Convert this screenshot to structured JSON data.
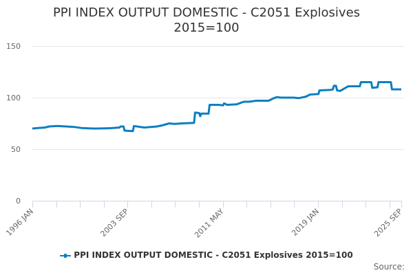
{
  "title_line1": "PPI INDEX OUTPUT DOMESTIC - C2051 Explosives",
  "title_line2": "2015=100",
  "legend_label": "PPI INDEX OUTPUT DOMESTIC - C2051 Explosives 2015=100",
  "source_label": "Source:",
  "colors": {
    "series": "#0a7fc2",
    "grid": "#e6e6e6",
    "axis": "#ccd6eb",
    "text": "#333333",
    "tick_text": "#666666"
  },
  "chart_data": {
    "type": "line",
    "title": "PPI INDEX OUTPUT DOMESTIC - C2051 Explosives 2015=100",
    "xlabel": "",
    "ylabel": "",
    "ylim": [
      0,
      150
    ],
    "yticks": [
      0,
      50,
      100,
      150
    ],
    "xtick_labels": [
      "1996 JAN",
      "2003 SEP",
      "2011 MAY",
      "2019 JAN",
      "2025 SEP"
    ],
    "grid": true,
    "legend_position": "bottom",
    "series": [
      {
        "name": "PPI INDEX OUTPUT DOMESTIC - C2051 Explosives 2015=100",
        "points": [
          [
            "1996 JAN",
            70.0
          ],
          [
            "1996 JUN",
            70.5
          ],
          [
            "1997 JAN",
            71.0
          ],
          [
            "1997 MAY",
            72.0
          ],
          [
            "1998 JAN",
            72.5
          ],
          [
            "1998 OCT",
            72.0
          ],
          [
            "1999 JUN",
            71.5
          ],
          [
            "2000 JAN",
            70.5
          ],
          [
            "2001 JAN",
            70.0
          ],
          [
            "2002 JAN",
            70.3
          ],
          [
            "2002 JUN",
            70.5
          ],
          [
            "2003 JAN",
            71.0
          ],
          [
            "2003 FEB",
            72.0
          ],
          [
            "2003 MAY",
            72.0
          ],
          [
            "2003 JUN",
            68.0
          ],
          [
            "2004 FEB",
            67.5
          ],
          [
            "2004 MAR",
            72.5
          ],
          [
            "2005 JAN",
            71.0
          ],
          [
            "2006 JAN",
            72.0
          ],
          [
            "2006 JUN",
            73.0
          ],
          [
            "2007 JAN",
            75.0
          ],
          [
            "2007 JUN",
            74.5
          ],
          [
            "2008 JAN",
            75.0
          ],
          [
            "2009 JAN",
            75.5
          ],
          [
            "2009 FEB",
            85.5
          ],
          [
            "2009 JUN",
            85.0
          ],
          [
            "2009 JUL",
            82.0
          ],
          [
            "2009 AUG",
            84.5
          ],
          [
            "2010 MAR",
            84.5
          ],
          [
            "2010 APR",
            93.0
          ],
          [
            "2011 JAN",
            93.0
          ],
          [
            "2011 MAY",
            92.5
          ],
          [
            "2011 JUN",
            94.5
          ],
          [
            "2011 SEP",
            93.0
          ],
          [
            "2012 JUN",
            93.5
          ],
          [
            "2013 JAN",
            96.0
          ],
          [
            "2013 JUN",
            96.0
          ],
          [
            "2014 JAN",
            97.0
          ],
          [
            "2015 JAN",
            97.0
          ],
          [
            "2015 JUN",
            99.5
          ],
          [
            "2015 SEP",
            100.5
          ],
          [
            "2016 JAN",
            100.0
          ],
          [
            "2017 JAN",
            100.0
          ],
          [
            "2017 JUN",
            99.5
          ],
          [
            "2018 JAN",
            101.0
          ],
          [
            "2018 MAY",
            103.0
          ],
          [
            "2019 JAN",
            103.5
          ],
          [
            "2019 FEB",
            107.0
          ],
          [
            "2020 JAN",
            107.5
          ],
          [
            "2020 MAR",
            108.0
          ],
          [
            "2020 APR",
            111.5
          ],
          [
            "2020 JUN",
            111.5
          ],
          [
            "2020 JUL",
            107.0
          ],
          [
            "2020 OCT",
            106.5
          ],
          [
            "2021 APR",
            110.0
          ],
          [
            "2021 JUN",
            111.0
          ],
          [
            "2022 MAY",
            111.0
          ],
          [
            "2022 JUN",
            115.0
          ],
          [
            "2023 APR",
            115.0
          ],
          [
            "2023 MAY",
            109.5
          ],
          [
            "2023 OCT",
            110.0
          ],
          [
            "2023 NOV",
            115.0
          ],
          [
            "2024 NOV",
            115.0
          ],
          [
            "2024 DEC",
            108.0
          ],
          [
            "2025 SEP",
            108.0
          ]
        ]
      }
    ]
  }
}
